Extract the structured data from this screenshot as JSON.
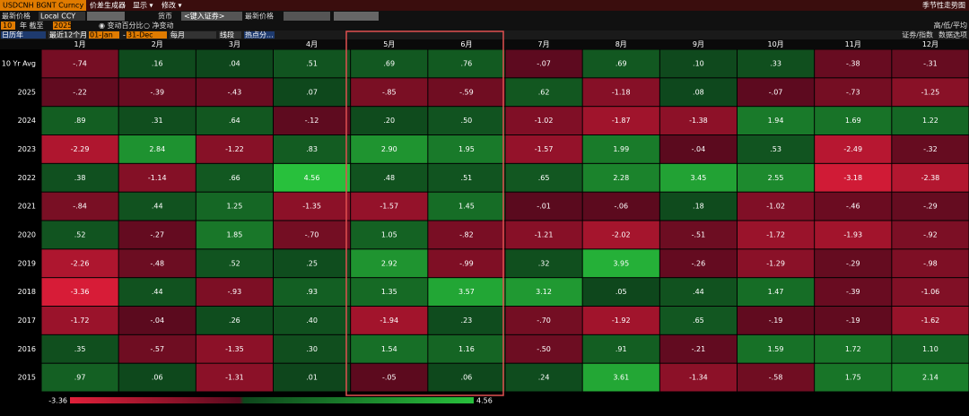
{
  "toolbar": {
    "ticker": "USDCNH BGNT Curncy",
    "menu": [
      "价差生成器",
      "显示 ▾",
      "修改 ▾"
    ],
    "right": "季节性走势图"
  },
  "row2": [
    "最新价格",
    "Local CCY",
    "货币",
    "<键入证券>",
    "最新价格"
  ],
  "row3": {
    "years": "10",
    "to": "年 截至",
    "end": "2025",
    "pct": "◉ 变动百分比",
    "net": "○ 净变动",
    "right": "高/低/平均"
  },
  "row4": {
    "items": [
      "日历年",
      "最近12个月",
      "01-Jan",
      "-",
      "31-Dec",
      "每月",
      "线段",
      "热点分..."
    ],
    "right": [
      "证券/指数",
      "数据选项"
    ]
  },
  "table": {
    "columns": [
      "1月",
      "2月",
      "3月",
      "4月",
      "5月",
      "6月",
      "7月",
      "8月",
      "9月",
      "10月",
      "11月",
      "12月"
    ],
    "rows": [
      {
        "label": "10 Yr Avg",
        "cells": [
          "-.74",
          ".16",
          ".04",
          ".51",
          ".69",
          ".76",
          "-.07",
          ".69",
          ".10",
          ".33",
          "-.38",
          "-.31"
        ]
      },
      {
        "label": "2025",
        "cells": [
          "-.22",
          "-.39",
          "-.43",
          ".07",
          "-.85",
          "-.59",
          ".62",
          "-1.18",
          ".08",
          "-.07",
          "-.73",
          "-1.25"
        ]
      },
      {
        "label": "2024",
        "cells": [
          ".89",
          ".31",
          ".64",
          "-.12",
          ".20",
          ".50",
          "-1.02",
          "-1.87",
          "-1.38",
          "1.94",
          "1.69",
          "1.22"
        ]
      },
      {
        "label": "2023",
        "cells": [
          "-2.29",
          "2.84",
          "-1.22",
          ".83",
          "2.90",
          "1.95",
          "-1.57",
          "1.99",
          "-.04",
          ".53",
          "-2.49",
          "-.32"
        ]
      },
      {
        "label": "2022",
        "cells": [
          ".38",
          "-1.14",
          ".66",
          "4.56",
          ".48",
          ".51",
          ".65",
          "2.28",
          "3.45",
          "2.55",
          "-3.18",
          "-2.38"
        ]
      },
      {
        "label": "2021",
        "cells": [
          "-.84",
          ".44",
          "1.25",
          "-1.35",
          "-1.57",
          "1.45",
          "-.01",
          "-.06",
          ".18",
          "-1.02",
          "-.46",
          "-.29"
        ]
      },
      {
        "label": "2020",
        "cells": [
          ".52",
          "-.27",
          "1.85",
          "-.70",
          "1.05",
          "-.82",
          "-1.21",
          "-2.02",
          "-.51",
          "-1.72",
          "-1.93",
          "-.92"
        ]
      },
      {
        "label": "2019",
        "cells": [
          "-2.26",
          "-.48",
          ".52",
          ".25",
          "2.92",
          "-.99",
          ".32",
          "3.95",
          "-.26",
          "-1.29",
          "-.29",
          "-.98"
        ]
      },
      {
        "label": "2018",
        "cells": [
          "-3.36",
          ".44",
          "-.93",
          ".93",
          "1.35",
          "3.57",
          "3.12",
          ".05",
          ".44",
          "1.47",
          "-.39",
          "-1.06"
        ]
      },
      {
        "label": "2017",
        "cells": [
          "-1.72",
          "-.04",
          ".26",
          ".40",
          "-1.94",
          ".23",
          "-.70",
          "-1.92",
          ".65",
          "-.19",
          "-.19",
          "-1.62"
        ]
      },
      {
        "label": "2016",
        "cells": [
          ".35",
          "-.57",
          "-1.35",
          ".30",
          "1.54",
          "1.16",
          "-.50",
          ".91",
          "-.21",
          "1.59",
          "1.72",
          "1.10"
        ]
      },
      {
        "label": "2015",
        "cells": [
          ".97",
          ".06",
          "-1.31",
          ".01",
          "-.05",
          ".06",
          ".24",
          "3.61",
          "-1.34",
          "-.58",
          "1.75",
          "2.14"
        ]
      }
    ]
  },
  "legend": {
    "min": "-3.36",
    "max": "4.56"
  }
}
